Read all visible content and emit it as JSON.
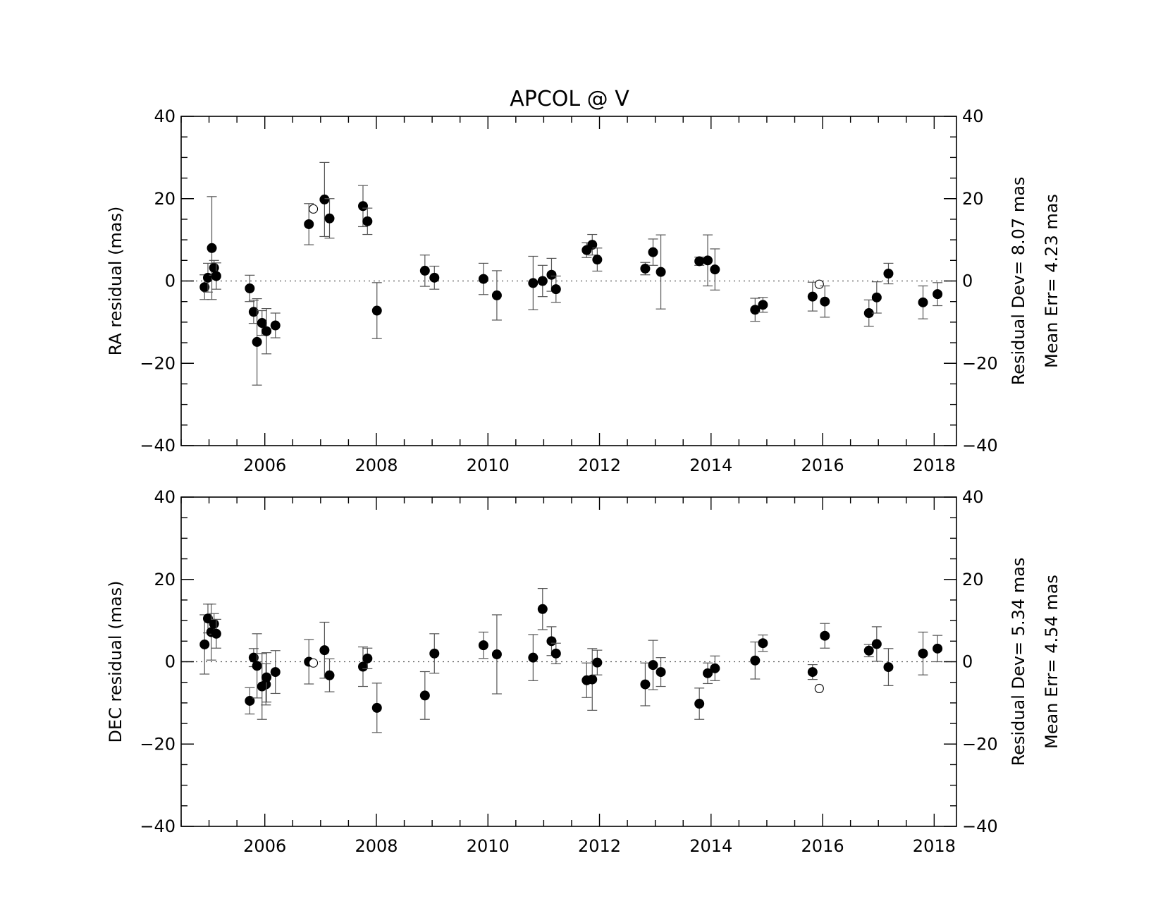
{
  "chart_data": [
    {
      "type": "scatter",
      "title": "APCOL @ V",
      "ylabel": "RA residual (mas)",
      "xlabel": "",
      "xlim": [
        2004.5,
        2018.4
      ],
      "ylim": [
        -40,
        40
      ],
      "xticks": [
        2006,
        2008,
        2010,
        2012,
        2014,
        2016,
        2018
      ],
      "yticks": [
        -40,
        -20,
        0,
        20,
        40
      ],
      "right_axis": true,
      "zero_line": "dotted",
      "annotations": [
        "Residual Dev=   8.07  mas",
        "Mean  Err=  4.23  mas"
      ],
      "points": [
        {
          "x": 2004.92,
          "y": -1.5,
          "err": 3.0,
          "filled": true
        },
        {
          "x": 2004.98,
          "y": 0.8,
          "err": 3.5,
          "filled": true
        },
        {
          "x": 2005.05,
          "y": 8.0,
          "err": 12.5,
          "filled": true
        },
        {
          "x": 2005.09,
          "y": 3.2,
          "err": 1.8,
          "filled": true
        },
        {
          "x": 2005.13,
          "y": 1.2,
          "err": 3.2,
          "filled": true
        },
        {
          "x": 2005.73,
          "y": -1.8,
          "err": 3.2,
          "filled": true
        },
        {
          "x": 2005.8,
          "y": -7.5,
          "err": 2.8,
          "filled": true
        },
        {
          "x": 2005.86,
          "y": -14.8,
          "err": 10.5,
          "filled": true
        },
        {
          "x": 2005.95,
          "y": -10.2,
          "err": 3.0,
          "filled": true
        },
        {
          "x": 2006.03,
          "y": -12.2,
          "err": 5.5,
          "filled": true
        },
        {
          "x": 2006.19,
          "y": -10.8,
          "err": 3.0,
          "filled": true
        },
        {
          "x": 2006.79,
          "y": 13.8,
          "err": 5.0,
          "filled": true
        },
        {
          "x": 2006.87,
          "y": 17.5,
          "err": 0,
          "filled": false
        },
        {
          "x": 2007.07,
          "y": 19.8,
          "err": 9.0,
          "filled": true
        },
        {
          "x": 2007.16,
          "y": 15.2,
          "err": 4.8,
          "filled": true
        },
        {
          "x": 2007.76,
          "y": 18.2,
          "err": 5.0,
          "filled": true
        },
        {
          "x": 2007.84,
          "y": 14.5,
          "err": 3.2,
          "filled": true
        },
        {
          "x": 2008.01,
          "y": -7.2,
          "err": 6.8,
          "filled": true
        },
        {
          "x": 2008.87,
          "y": 2.5,
          "err": 3.8,
          "filled": true
        },
        {
          "x": 2009.04,
          "y": 0.8,
          "err": 2.8,
          "filled": true
        },
        {
          "x": 2009.92,
          "y": 0.5,
          "err": 3.8,
          "filled": true
        },
        {
          "x": 2010.16,
          "y": -3.5,
          "err": 6.0,
          "filled": true
        },
        {
          "x": 2010.81,
          "y": -0.5,
          "err": 6.5,
          "filled": true
        },
        {
          "x": 2010.98,
          "y": 0.0,
          "err": 3.8,
          "filled": true
        },
        {
          "x": 2011.14,
          "y": 1.5,
          "err": 4.0,
          "filled": true
        },
        {
          "x": 2011.22,
          "y": -2.0,
          "err": 3.2,
          "filled": true
        },
        {
          "x": 2011.77,
          "y": 7.5,
          "err": 1.8,
          "filled": true
        },
        {
          "x": 2011.87,
          "y": 8.8,
          "err": 2.5,
          "filled": true
        },
        {
          "x": 2011.96,
          "y": 5.2,
          "err": 2.8,
          "filled": true
        },
        {
          "x": 2012.82,
          "y": 3.0,
          "err": 1.5,
          "filled": true
        },
        {
          "x": 2012.96,
          "y": 7.0,
          "err": 3.2,
          "filled": true
        },
        {
          "x": 2013.1,
          "y": 2.2,
          "err": 9.0,
          "filled": true
        },
        {
          "x": 2013.79,
          "y": 4.8,
          "err": 1.0,
          "filled": true
        },
        {
          "x": 2013.94,
          "y": 5.0,
          "err": 6.2,
          "filled": true
        },
        {
          "x": 2014.07,
          "y": 2.8,
          "err": 5.0,
          "filled": true
        },
        {
          "x": 2014.79,
          "y": -7.0,
          "err": 2.8,
          "filled": true
        },
        {
          "x": 2014.93,
          "y": -5.8,
          "err": 1.8,
          "filled": true
        },
        {
          "x": 2015.82,
          "y": -3.8,
          "err": 3.5,
          "filled": true
        },
        {
          "x": 2015.94,
          "y": -0.8,
          "err": 0,
          "filled": false
        },
        {
          "x": 2016.04,
          "y": -5.0,
          "err": 3.8,
          "filled": true
        },
        {
          "x": 2016.83,
          "y": -7.8,
          "err": 3.2,
          "filled": true
        },
        {
          "x": 2016.97,
          "y": -4.0,
          "err": 3.8,
          "filled": true
        },
        {
          "x": 2017.18,
          "y": 1.8,
          "err": 2.5,
          "filled": true
        },
        {
          "x": 2017.8,
          "y": -5.2,
          "err": 4.0,
          "filled": true
        },
        {
          "x": 2018.06,
          "y": -3.2,
          "err": 2.8,
          "filled": true
        }
      ]
    },
    {
      "type": "scatter",
      "title": "",
      "ylabel": "DEC residual (mas)",
      "xlabel": "",
      "xlim": [
        2004.5,
        2018.4
      ],
      "ylim": [
        -40,
        40
      ],
      "xticks": [
        2006,
        2008,
        2010,
        2012,
        2014,
        2016,
        2018
      ],
      "yticks": [
        -40,
        -20,
        0,
        20,
        40
      ],
      "right_axis": true,
      "zero_line": "dotted",
      "annotations": [
        "Residual Dev=   5.34  mas",
        "Mean  Err=  4.54  mas"
      ],
      "points": [
        {
          "x": 2004.92,
          "y": 4.2,
          "err": 7.2,
          "filled": true
        },
        {
          "x": 2004.98,
          "y": 10.5,
          "err": 3.5,
          "filled": true
        },
        {
          "x": 2005.04,
          "y": 7.2,
          "err": 6.8,
          "filled": true
        },
        {
          "x": 2005.09,
          "y": 9.2,
          "err": 2.5,
          "filled": true
        },
        {
          "x": 2005.13,
          "y": 6.8,
          "err": 3.5,
          "filled": true
        },
        {
          "x": 2005.73,
          "y": -9.5,
          "err": 3.2,
          "filled": true
        },
        {
          "x": 2005.8,
          "y": 1.0,
          "err": 2.2,
          "filled": true
        },
        {
          "x": 2005.86,
          "y": -1.0,
          "err": 7.8,
          "filled": true
        },
        {
          "x": 2005.95,
          "y": -6.0,
          "err": 8.0,
          "filled": true
        },
        {
          "x": 2006.02,
          "y": -5.5,
          "err": 5.0,
          "filled": true
        },
        {
          "x": 2006.03,
          "y": -3.8,
          "err": 6.0,
          "filled": true
        },
        {
          "x": 2006.19,
          "y": -2.5,
          "err": 5.2,
          "filled": true
        },
        {
          "x": 2006.79,
          "y": 0.0,
          "err": 5.4,
          "filled": true
        },
        {
          "x": 2006.87,
          "y": -0.3,
          "err": 0,
          "filled": false
        },
        {
          "x": 2007.07,
          "y": 2.8,
          "err": 6.8,
          "filled": true
        },
        {
          "x": 2007.16,
          "y": -3.3,
          "err": 4.0,
          "filled": true
        },
        {
          "x": 2007.76,
          "y": -1.2,
          "err": 4.8,
          "filled": true
        },
        {
          "x": 2007.84,
          "y": 0.8,
          "err": 2.5,
          "filled": true
        },
        {
          "x": 2008.01,
          "y": -11.2,
          "err": 6.0,
          "filled": true
        },
        {
          "x": 2008.87,
          "y": -8.2,
          "err": 5.8,
          "filled": true
        },
        {
          "x": 2009.04,
          "y": 2.0,
          "err": 4.8,
          "filled": true
        },
        {
          "x": 2009.92,
          "y": 4.0,
          "err": 3.2,
          "filled": true
        },
        {
          "x": 2010.16,
          "y": 1.8,
          "err": 9.6,
          "filled": true
        },
        {
          "x": 2010.81,
          "y": 1.0,
          "err": 5.6,
          "filled": true
        },
        {
          "x": 2010.98,
          "y": 12.8,
          "err": 5.0,
          "filled": true
        },
        {
          "x": 2011.14,
          "y": 5.0,
          "err": 3.5,
          "filled": true
        },
        {
          "x": 2011.22,
          "y": 2.0,
          "err": 2.5,
          "filled": true
        },
        {
          "x": 2011.77,
          "y": -4.5,
          "err": 4.2,
          "filled": true
        },
        {
          "x": 2011.87,
          "y": -4.3,
          "err": 7.5,
          "filled": true
        },
        {
          "x": 2011.96,
          "y": -0.2,
          "err": 3.0,
          "filled": true
        },
        {
          "x": 2012.82,
          "y": -5.5,
          "err": 5.2,
          "filled": true
        },
        {
          "x": 2012.96,
          "y": -0.8,
          "err": 6.0,
          "filled": true
        },
        {
          "x": 2013.1,
          "y": -2.5,
          "err": 3.5,
          "filled": true
        },
        {
          "x": 2013.79,
          "y": -10.2,
          "err": 3.8,
          "filled": true
        },
        {
          "x": 2013.94,
          "y": -2.8,
          "err": 2.5,
          "filled": true
        },
        {
          "x": 2014.07,
          "y": -1.6,
          "err": 3.0,
          "filled": true
        },
        {
          "x": 2014.79,
          "y": 0.3,
          "err": 4.5,
          "filled": true
        },
        {
          "x": 2014.93,
          "y": 4.5,
          "err": 2.0,
          "filled": true
        },
        {
          "x": 2015.82,
          "y": -2.5,
          "err": 1.8,
          "filled": true
        },
        {
          "x": 2015.94,
          "y": -6.5,
          "err": 0,
          "filled": false
        },
        {
          "x": 2016.04,
          "y": 6.3,
          "err": 3.0,
          "filled": true
        },
        {
          "x": 2016.83,
          "y": 2.7,
          "err": 1.5,
          "filled": true
        },
        {
          "x": 2016.97,
          "y": 4.3,
          "err": 4.2,
          "filled": true
        },
        {
          "x": 2017.18,
          "y": -1.3,
          "err": 4.5,
          "filled": true
        },
        {
          "x": 2017.8,
          "y": 2.0,
          "err": 5.2,
          "filled": true
        },
        {
          "x": 2018.06,
          "y": 3.2,
          "err": 3.2,
          "filled": true
        }
      ]
    }
  ]
}
